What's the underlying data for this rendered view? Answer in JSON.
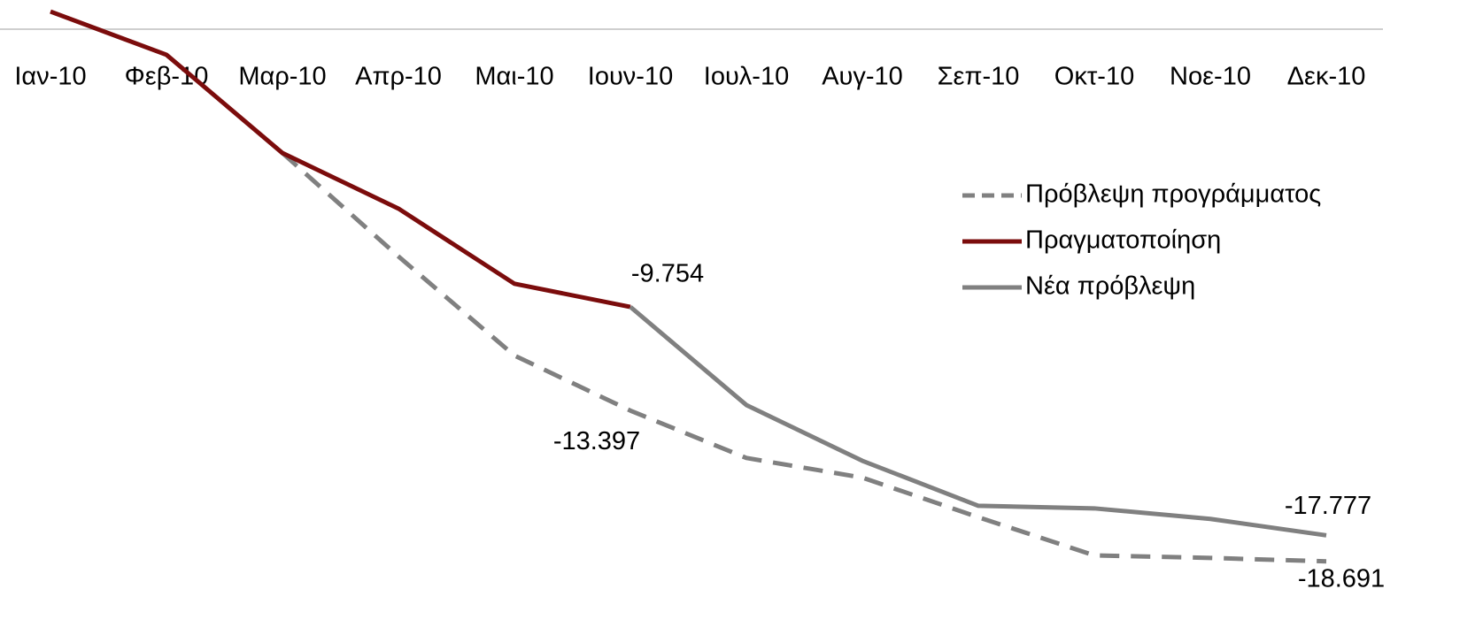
{
  "chart_data": {
    "type": "line",
    "categories": [
      "Ιαν-10",
      "Φεβ-10",
      "Μαρ-10",
      "Απρ-10",
      "Μαι-10",
      "Ιουν-10",
      "Ιουλ-10",
      "Αυγ-10",
      "Σεπ-10",
      "Οκτ-10",
      "Νοε-10",
      "Δεκ-10"
    ],
    "series": [
      {
        "name": "Πρόβλεψη προγράμματος",
        "color": "#808080",
        "dashed": true,
        "values": [
          null,
          null,
          -4.35,
          -7.98,
          -11.46,
          -13.397,
          -15.06,
          -15.75,
          -17.14,
          -18.48,
          -18.57,
          -18.691
        ],
        "value_labels": [
          null,
          null,
          null,
          null,
          null,
          "-13.397",
          null,
          null,
          null,
          null,
          null,
          "-18.691"
        ]
      },
      {
        "name": "Πραγματοποίηση",
        "color": "#7b0c0c",
        "dashed": false,
        "values": [
          0.62,
          -0.9,
          -4.35,
          -6.3,
          -8.94,
          -9.754,
          null,
          null,
          null,
          null,
          null,
          null
        ],
        "value_labels": [
          null,
          null,
          null,
          null,
          null,
          "-9.754",
          null,
          null,
          null,
          null,
          null,
          null
        ]
      },
      {
        "name": "Νέα πρόβλεψη",
        "color": "#808080",
        "dashed": false,
        "values": [
          null,
          null,
          null,
          null,
          null,
          -9.754,
          -13.2,
          -15.16,
          -16.74,
          -16.83,
          -17.2,
          -17.777
        ],
        "value_labels": [
          null,
          null,
          null,
          null,
          null,
          null,
          null,
          null,
          null,
          null,
          null,
          "-17.777"
        ]
      }
    ],
    "ylim": [
      -19.6,
      1.0
    ],
    "legend": "right"
  }
}
